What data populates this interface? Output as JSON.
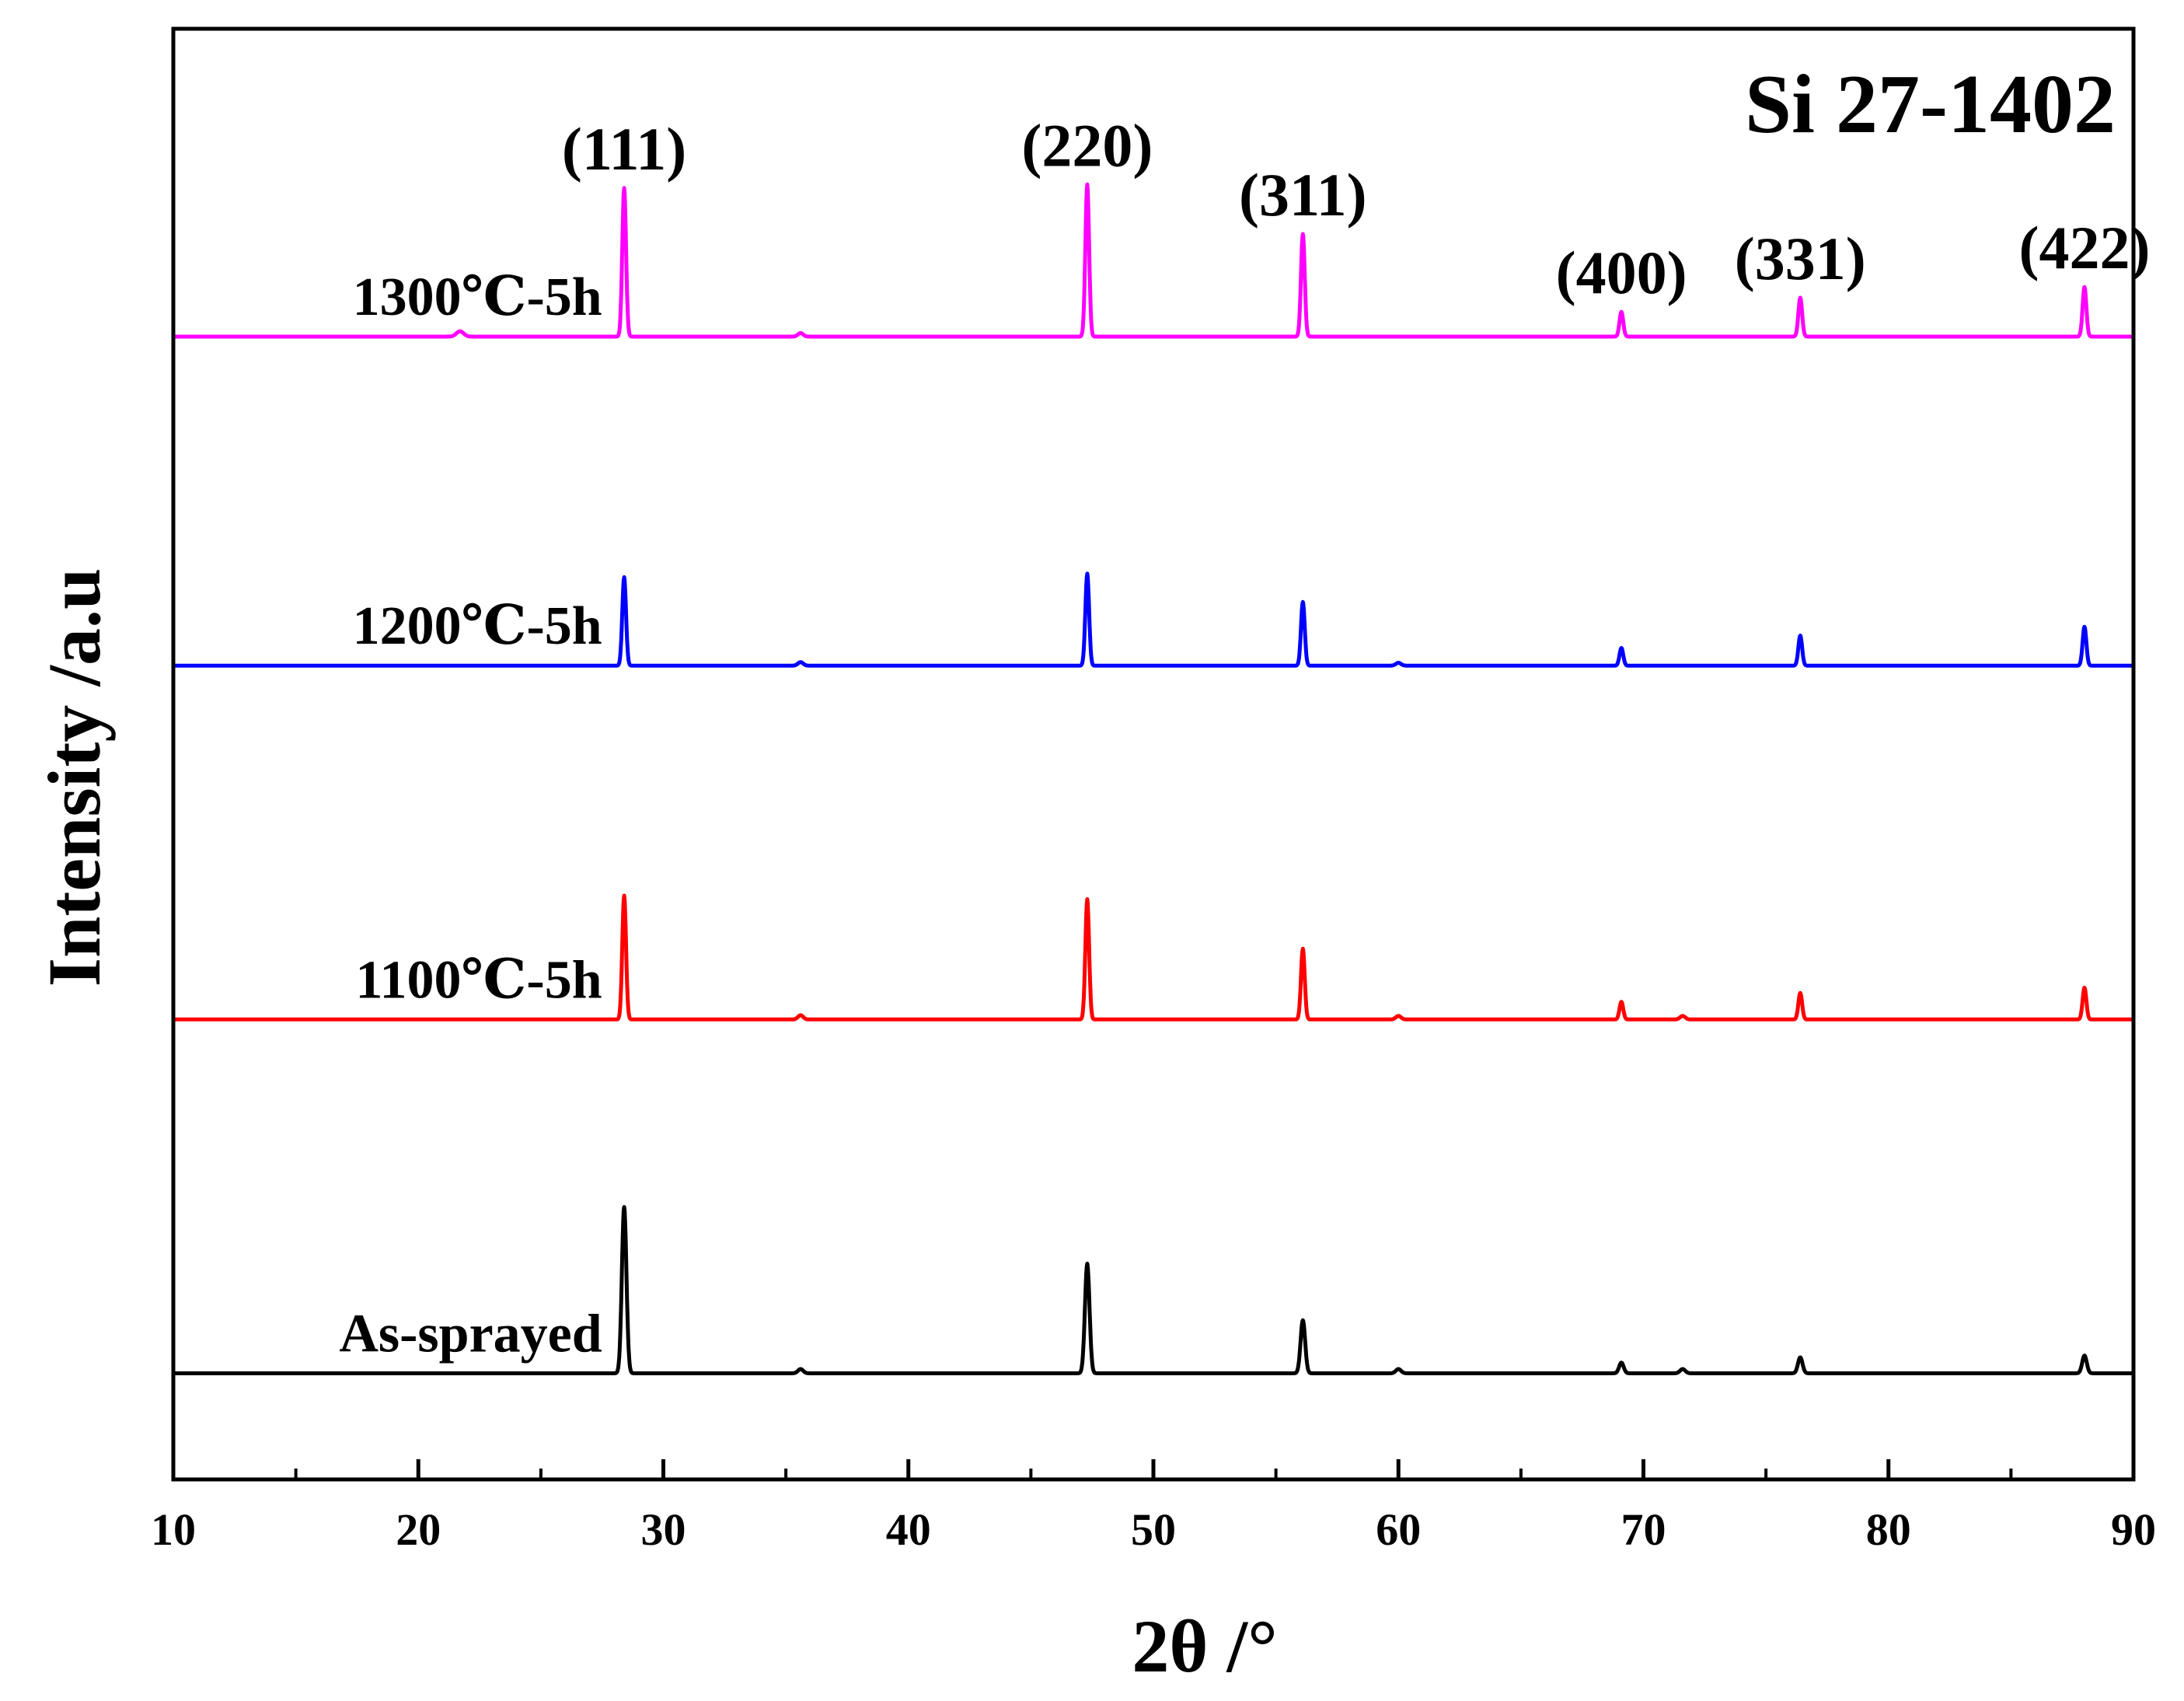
{
  "chart_data": {
    "type": "line",
    "title": "",
    "xlabel": "2θ /°",
    "ylabel": "Intensity /a.u",
    "xlim": [
      10,
      90
    ],
    "xticks": [
      10,
      20,
      30,
      40,
      50,
      60,
      70,
      80,
      90
    ],
    "xtick_labels": [
      "10",
      "20",
      "30",
      "40",
      "50",
      "60",
      "70",
      "80",
      "90"
    ],
    "minor_xticks": [
      15,
      25,
      35,
      45,
      55,
      65,
      75,
      85
    ],
    "ylim": [
      0,
      4.1
    ],
    "yticks_shown": false,
    "grid": false,
    "reference_label": "Si 27-1402",
    "peak_labels": [
      {
        "hkl": "(111)",
        "two_theta": 28.4
      },
      {
        "hkl": "(220)",
        "two_theta": 47.3
      },
      {
        "hkl": "(311)",
        "two_theta": 56.1
      },
      {
        "hkl": "(400)",
        "two_theta": 69.1
      },
      {
        "hkl": "(331)",
        "two_theta": 76.4
      },
      {
        "hkl": "(422)",
        "two_theta": 88.0
      }
    ],
    "series": [
      {
        "name": "As-sprayed",
        "color": "#000000",
        "offset": 0.3,
        "peaks": [
          {
            "two_theta": 28.4,
            "intensity": 0.47,
            "width": 0.22
          },
          {
            "two_theta": 47.3,
            "intensity": 0.31,
            "width": 0.22
          },
          {
            "two_theta": 56.1,
            "intensity": 0.15,
            "width": 0.22
          },
          {
            "two_theta": 35.6,
            "intensity": 0.012,
            "width": 0.25
          },
          {
            "two_theta": 60.0,
            "intensity": 0.012,
            "width": 0.25
          },
          {
            "two_theta": 69.1,
            "intensity": 0.03,
            "width": 0.22
          },
          {
            "two_theta": 71.6,
            "intensity": 0.012,
            "width": 0.25
          },
          {
            "two_theta": 76.4,
            "intensity": 0.045,
            "width": 0.22
          },
          {
            "two_theta": 88.0,
            "intensity": 0.05,
            "width": 0.22
          }
        ]
      },
      {
        "name": "1100℃-5h",
        "color": "#ff0000",
        "offset": 1.3,
        "peaks": [
          {
            "two_theta": 28.4,
            "intensity": 0.35,
            "width": 0.18
          },
          {
            "two_theta": 47.3,
            "intensity": 0.34,
            "width": 0.18
          },
          {
            "two_theta": 56.1,
            "intensity": 0.2,
            "width": 0.18
          },
          {
            "two_theta": 35.6,
            "intensity": 0.012,
            "width": 0.25
          },
          {
            "two_theta": 60.0,
            "intensity": 0.01,
            "width": 0.25
          },
          {
            "two_theta": 69.1,
            "intensity": 0.05,
            "width": 0.18
          },
          {
            "two_theta": 71.6,
            "intensity": 0.01,
            "width": 0.25
          },
          {
            "two_theta": 76.4,
            "intensity": 0.075,
            "width": 0.18
          },
          {
            "two_theta": 88.0,
            "intensity": 0.09,
            "width": 0.18
          }
        ]
      },
      {
        "name": "1200℃-5h",
        "color": "#0000ff",
        "offset": 2.3,
        "peaks": [
          {
            "two_theta": 28.4,
            "intensity": 0.25,
            "width": 0.18
          },
          {
            "two_theta": 47.3,
            "intensity": 0.26,
            "width": 0.18
          },
          {
            "two_theta": 56.1,
            "intensity": 0.18,
            "width": 0.18
          },
          {
            "two_theta": 35.6,
            "intensity": 0.01,
            "width": 0.25
          },
          {
            "two_theta": 60.0,
            "intensity": 0.008,
            "width": 0.25
          },
          {
            "two_theta": 69.1,
            "intensity": 0.05,
            "width": 0.18
          },
          {
            "two_theta": 76.4,
            "intensity": 0.085,
            "width": 0.18
          },
          {
            "two_theta": 88.0,
            "intensity": 0.11,
            "width": 0.18
          }
        ]
      },
      {
        "name": "1300℃-5h",
        "color": "#ff00ff",
        "offset": 3.23,
        "peaks": [
          {
            "two_theta": 28.4,
            "intensity": 0.42,
            "width": 0.18
          },
          {
            "two_theta": 47.3,
            "intensity": 0.43,
            "width": 0.18
          },
          {
            "two_theta": 56.1,
            "intensity": 0.29,
            "width": 0.18
          },
          {
            "two_theta": 21.7,
            "intensity": 0.015,
            "width": 0.35
          },
          {
            "two_theta": 35.6,
            "intensity": 0.01,
            "width": 0.25
          },
          {
            "two_theta": 69.1,
            "intensity": 0.07,
            "width": 0.18
          },
          {
            "two_theta": 76.4,
            "intensity": 0.11,
            "width": 0.18
          },
          {
            "two_theta": 88.0,
            "intensity": 0.14,
            "width": 0.18
          }
        ]
      }
    ]
  }
}
